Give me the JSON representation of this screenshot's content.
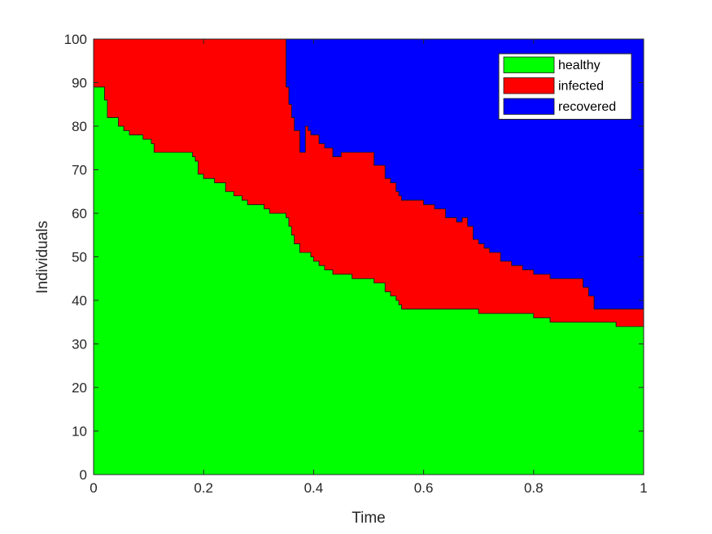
{
  "chart_data": {
    "type": "area",
    "stacked": true,
    "xlabel": "Time",
    "ylabel": "Individuals",
    "xlim": [
      0,
      1
    ],
    "ylim": [
      0,
      100
    ],
    "xticks": [
      0,
      0.2,
      0.4,
      0.6,
      0.8,
      1
    ],
    "xtick_labels": [
      "0",
      "0.2",
      "0.4",
      "0.6",
      "0.8",
      "1"
    ],
    "yticks": [
      0,
      10,
      20,
      30,
      40,
      50,
      60,
      70,
      80,
      90,
      100
    ],
    "ytick_labels": [
      "0",
      "10",
      "20",
      "30",
      "40",
      "50",
      "60",
      "70",
      "80",
      "90",
      "100"
    ],
    "grid": false,
    "legend_position": "top-right",
    "x": [
      0,
      0.01,
      0.02,
      0.025,
      0.045,
      0.055,
      0.065,
      0.075,
      0.09,
      0.105,
      0.11,
      0.125,
      0.14,
      0.155,
      0.17,
      0.18,
      0.185,
      0.19,
      0.2,
      0.22,
      0.24,
      0.255,
      0.27,
      0.28,
      0.3,
      0.31,
      0.32,
      0.335,
      0.345,
      0.348,
      0.35,
      0.355,
      0.36,
      0.365,
      0.375,
      0.385,
      0.39,
      0.395,
      0.4,
      0.41,
      0.415,
      0.42,
      0.435,
      0.45,
      0.47,
      0.5,
      0.51,
      0.53,
      0.54,
      0.55,
      0.555,
      0.56,
      0.565,
      0.58,
      0.6,
      0.62,
      0.64,
      0.66,
      0.67,
      0.68,
      0.69,
      0.7,
      0.71,
      0.72,
      0.74,
      0.76,
      0.77,
      0.78,
      0.79,
      0.8,
      0.81,
      0.83,
      0.85,
      0.88,
      0.89,
      0.9,
      0.91,
      0.95,
      0.97,
      1
    ],
    "series": [
      {
        "name": "healthy",
        "color": "#00ff00",
        "values": [
          89,
          89,
          86,
          82,
          80,
          79,
          78,
          78,
          77,
          76,
          74,
          74,
          74,
          74,
          74,
          73,
          72,
          69,
          68,
          67,
          65,
          64,
          63,
          62,
          62,
          61,
          60,
          60,
          60,
          60,
          59,
          57,
          55,
          53,
          51,
          51,
          51,
          50,
          49,
          48,
          48,
          47,
          46,
          46,
          45,
          45,
          44,
          42,
          41,
          40,
          39,
          38,
          38,
          38,
          38,
          38,
          38,
          38,
          38,
          38,
          38,
          37,
          37,
          37,
          37,
          37,
          37,
          37,
          37,
          36,
          36,
          35,
          35,
          35,
          35,
          35,
          35,
          34,
          34,
          34
        ]
      },
      {
        "name": "infected",
        "color": "#ff0000",
        "values": [
          11,
          11,
          14,
          18,
          20,
          21,
          22,
          22,
          23,
          24,
          26,
          26,
          26,
          26,
          26,
          27,
          28,
          31,
          32,
          33,
          35,
          36,
          37,
          38,
          38,
          39,
          40,
          40,
          40,
          40,
          30,
          28,
          27,
          26,
          23,
          29,
          28,
          28,
          29,
          28,
          28,
          28,
          27,
          28,
          29,
          29,
          27,
          26,
          26,
          25,
          25,
          25,
          25,
          25,
          24,
          23,
          21,
          20,
          21,
          19,
          16,
          16,
          15,
          14,
          12,
          11,
          11,
          10,
          10,
          10,
          10,
          10,
          10,
          10,
          8,
          6,
          3,
          4,
          4,
          4
        ]
      },
      {
        "name": "recovered",
        "color": "#0000ff",
        "values": [
          0,
          0,
          0,
          0,
          0,
          0,
          0,
          0,
          0,
          0,
          0,
          0,
          0,
          0,
          0,
          0,
          0,
          0,
          0,
          0,
          0,
          0,
          0,
          0,
          0,
          0,
          0,
          0,
          0,
          0,
          11,
          15,
          18,
          21,
          26,
          20,
          21,
          22,
          22,
          24,
          24,
          25,
          27,
          26,
          26,
          26,
          29,
          32,
          33,
          35,
          36,
          37,
          37,
          37,
          38,
          39,
          41,
          42,
          41,
          43,
          46,
          47,
          48,
          49,
          51,
          52,
          52,
          53,
          53,
          54,
          54,
          55,
          55,
          55,
          57,
          59,
          62,
          62,
          62,
          62
        ]
      }
    ]
  }
}
